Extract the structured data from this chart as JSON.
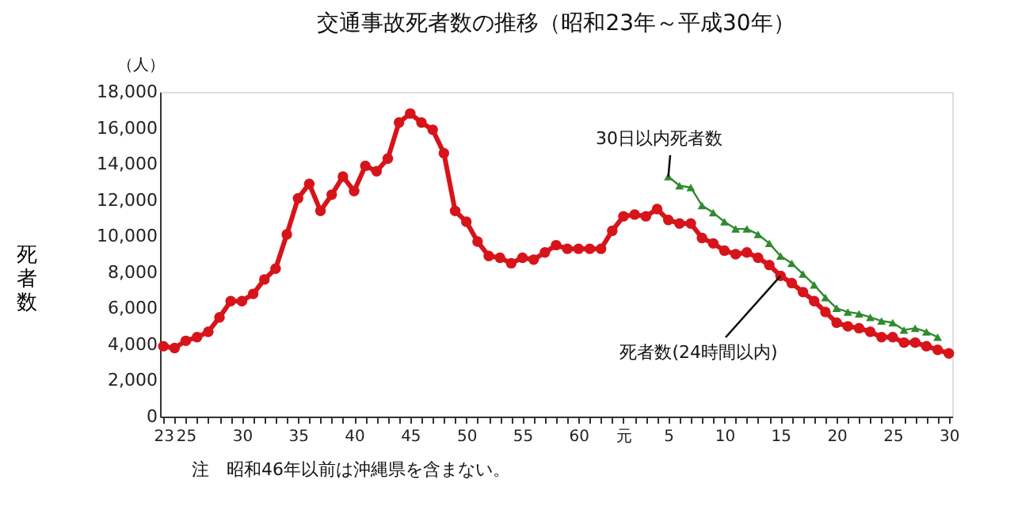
{
  "chart_data": {
    "type": "line",
    "title": "交通事故死者数の推移（昭和23年～平成30年）",
    "ylabel": "死者数",
    "categories": [
      "23",
      null,
      "25",
      null,
      null,
      null,
      null,
      "30",
      null,
      null,
      null,
      null,
      "35",
      null,
      null,
      null,
      null,
      "40",
      null,
      null,
      null,
      null,
      "45",
      null,
      null,
      null,
      null,
      "50",
      null,
      null,
      null,
      null,
      "55",
      null,
      null,
      null,
      null,
      "60",
      null,
      null,
      null,
      "元",
      null,
      null,
      null,
      "5",
      null,
      null,
      null,
      null,
      "10",
      null,
      null,
      null,
      null,
      "15",
      null,
      null,
      null,
      null,
      "20",
      null,
      null,
      null,
      null,
      "25",
      null,
      null,
      null,
      null,
      "30"
    ],
    "ylim": [
      0,
      18000
    ],
    "yticks": [
      0,
      {
        "value": 2000,
        "label": "2,000"
      },
      {
        "value": 4000,
        "label": "4,000"
      },
      {
        "value": 6000,
        "label": "6,000"
      },
      {
        "value": 8000,
        "label": "8,000"
      },
      {
        "value": 10000,
        "label": "10,000"
      },
      {
        "value": 12000,
        "label": "12,000"
      },
      {
        "value": 14000,
        "label": "14,000"
      },
      {
        "value": 16000,
        "label": "16,000"
      },
      {
        "value": 18000,
        "label": "18,000"
      }
    ],
    "grid": false,
    "line_style": "solid",
    "series": [
      {
        "color": "#d7141a",
        "marker": "circle",
        "values": [
          3900,
          3800,
          4200,
          4400,
          4700,
          5500,
          6400,
          6400,
          6800,
          7600,
          8200,
          10100,
          12100,
          12900,
          11400,
          12300,
          13300,
          12500,
          13900,
          13600,
          14300,
          16300,
          16800,
          16300,
          15900,
          14600,
          11400,
          10800,
          9700,
          8900,
          8800,
          8500,
          8800,
          8700,
          9100,
          9500,
          9300,
          9300,
          9300,
          9300,
          10300,
          11100,
          11200,
          11100,
          11500,
          10900,
          10700,
          10700,
          9900,
          9600,
          9200,
          9000,
          9100,
          8800,
          8400,
          7800,
          7400,
          6900,
          6400,
          5800,
          5200,
          5000,
          4900,
          4700,
          4400,
          4400,
          4100,
          4100,
          3900,
          3700,
          3500
        ]
      },
      {
        "color": "#2e8b2e",
        "marker": "triangle",
        "values": [
          null,
          null,
          null,
          null,
          null,
          null,
          null,
          null,
          null,
          null,
          null,
          null,
          null,
          null,
          null,
          null,
          null,
          null,
          null,
          null,
          null,
          null,
          null,
          null,
          null,
          null,
          null,
          null,
          null,
          null,
          null,
          null,
          null,
          null,
          null,
          null,
          null,
          null,
          null,
          null,
          null,
          null,
          null,
          null,
          null,
          13300,
          12800,
          12700,
          11700,
          11300,
          10800,
          10400,
          10400,
          10100,
          9600,
          8900,
          8500,
          7900,
          7300,
          6600,
          6000,
          5800,
          5700,
          5500,
          5300,
          5200,
          4800,
          4900,
          4700,
          4400,
          null
        ]
      }
    ],
    "annotations": [
      "（人）",
      {
        "text": "30日以内死者数",
        "x": "5",
        "y": 13300
      },
      {
        "text": "死者数(24時間以内)",
        "x": "15",
        "y": 7800
      },
      "注　昭和46年以前は沖縄県を含まない。"
    ]
  }
}
